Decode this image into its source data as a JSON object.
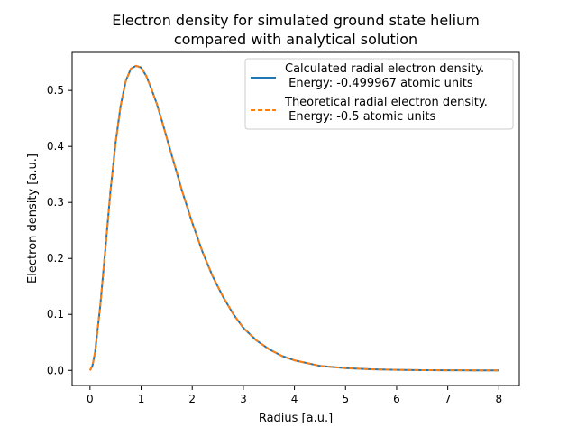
{
  "chart_data": {
    "type": "line",
    "title_line1": "Electron density for simulated ground state helium",
    "title_line2": "compared with analytical solution",
    "xlabel": "Radius [a.u.]",
    "ylabel": "Electron density  [a.u.]",
    "xlim": [
      -0.35,
      8.4
    ],
    "ylim": [
      -0.027,
      0.568
    ],
    "xticks": [
      0,
      1,
      2,
      3,
      4,
      5,
      6,
      7,
      8
    ],
    "yticks": [
      0.0,
      0.1,
      0.2,
      0.3,
      0.4,
      0.5
    ],
    "grid": false,
    "legend_position": "top-right",
    "series": [
      {
        "name_line1": "Calculated radial electron density.",
        "name_line2": " Energy: -0.499967 atomic units",
        "color": "#1f77b4",
        "style": "solid",
        "x": [
          0,
          0.05,
          0.1,
          0.2,
          0.3,
          0.4,
          0.5,
          0.6,
          0.7,
          0.8,
          0.9,
          1.0,
          1.1,
          1.2,
          1.3,
          1.4,
          1.5,
          1.6,
          1.8,
          2.0,
          2.2,
          2.4,
          2.6,
          2.8,
          3.0,
          3.25,
          3.5,
          3.75,
          4.0,
          4.5,
          5.0,
          5.5,
          6.0,
          6.5,
          7.0,
          7.5,
          8.0
        ],
        "y": [
          0.0,
          0.009,
          0.033,
          0.115,
          0.216,
          0.32,
          0.406,
          0.473,
          0.517,
          0.539,
          0.544,
          0.541,
          0.526,
          0.503,
          0.478,
          0.448,
          0.416,
          0.384,
          0.321,
          0.264,
          0.212,
          0.168,
          0.132,
          0.101,
          0.076,
          0.054,
          0.038,
          0.026,
          0.018,
          0.008,
          0.004,
          0.002,
          0.001,
          0.0005,
          0.0002,
          0.0001,
          0.0
        ]
      },
      {
        "name_line1": "Theoretical radial electron density.",
        "name_line2": " Energy: -0.5 atomic units",
        "color": "#ff7f0e",
        "style": "dashed",
        "x": [
          0,
          0.05,
          0.1,
          0.2,
          0.3,
          0.4,
          0.5,
          0.6,
          0.7,
          0.8,
          0.9,
          1.0,
          1.1,
          1.2,
          1.3,
          1.4,
          1.5,
          1.6,
          1.8,
          2.0,
          2.2,
          2.4,
          2.6,
          2.8,
          3.0,
          3.25,
          3.5,
          3.75,
          4.0,
          4.5,
          5.0,
          5.5,
          6.0,
          6.5,
          7.0,
          7.5,
          8.0
        ],
        "y": [
          0.0,
          0.009,
          0.033,
          0.115,
          0.216,
          0.32,
          0.406,
          0.473,
          0.517,
          0.539,
          0.544,
          0.541,
          0.526,
          0.503,
          0.478,
          0.448,
          0.416,
          0.384,
          0.321,
          0.264,
          0.212,
          0.168,
          0.132,
          0.101,
          0.076,
          0.054,
          0.038,
          0.026,
          0.018,
          0.008,
          0.004,
          0.002,
          0.001,
          0.0005,
          0.0002,
          0.0001,
          0.0
        ]
      }
    ]
  }
}
